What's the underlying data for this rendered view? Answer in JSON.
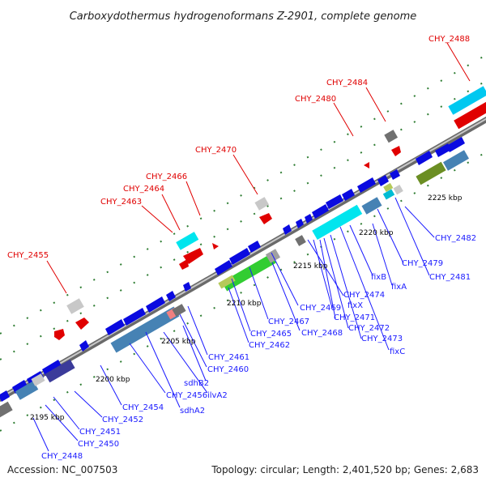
{
  "title": "Carboxydothermus hydrogenoformans Z-2901, complete genome",
  "footer": {
    "accession": "Accession: NC_007503",
    "summary": "Topology: circular; Length: 2,401,520 bp; Genes: 2,683"
  },
  "colors": {
    "gene_label_red": "#e00000",
    "gene_label_blue": "#1a1aff",
    "kbp_text": "#000000",
    "backbone_outer": "#707070",
    "backbone_inner": "#b8b8b8",
    "tick_green": "#2e7d32",
    "forward_gene": "#0a0ae0",
    "reverse_gene": "#e00000"
  },
  "scale_labels": [
    {
      "id": "kbp-2195",
      "text": "2195 kbp"
    },
    {
      "id": "kbp-2200",
      "text": "2200 kbp"
    },
    {
      "id": "kbp-2205",
      "text": "2205 kbp"
    },
    {
      "id": "kbp-2210",
      "text": "2210 kbp"
    },
    {
      "id": "kbp-2215",
      "text": "2215 kbp"
    },
    {
      "id": "kbp-2220",
      "text": "2220 kbp"
    },
    {
      "id": "kbp-2225",
      "text": "2225 kbp"
    }
  ],
  "red_labels": [
    {
      "id": "CHY_2455",
      "text": "CHY_2455"
    },
    {
      "id": "CHY_2463",
      "text": "CHY_2463"
    },
    {
      "id": "CHY_2464",
      "text": "CHY_2464"
    },
    {
      "id": "CHY_2466",
      "text": "CHY_2466"
    },
    {
      "id": "CHY_2470",
      "text": "CHY_2470"
    },
    {
      "id": "CHY_2480",
      "text": "CHY_2480"
    },
    {
      "id": "CHY_2484",
      "text": "CHY_2484"
    },
    {
      "id": "CHY_2488",
      "text": "CHY_2488"
    }
  ],
  "blue_labels": [
    {
      "id": "CHY_2448",
      "text": "CHY_2448"
    },
    {
      "id": "CHY_2450",
      "text": "CHY_2450"
    },
    {
      "id": "CHY_2451",
      "text": "CHY_2451"
    },
    {
      "id": "CHY_2452",
      "text": "CHY_2452"
    },
    {
      "id": "CHY_2454",
      "text": "CHY_2454"
    },
    {
      "id": "CHY_2456",
      "text": "CHY_2456"
    },
    {
      "id": "sdhA2",
      "text": "sdhA2"
    },
    {
      "id": "ilvA2",
      "text": "ilvA2"
    },
    {
      "id": "sdhB2",
      "text": "sdhB2"
    },
    {
      "id": "CHY_2460",
      "text": "CHY_2460"
    },
    {
      "id": "CHY_2461",
      "text": "CHY_2461"
    },
    {
      "id": "CHY_2462",
      "text": "CHY_2462"
    },
    {
      "id": "CHY_2465",
      "text": "CHY_2465"
    },
    {
      "id": "CHY_2467",
      "text": "CHY_2467"
    },
    {
      "id": "CHY_2469",
      "text": "CHY_2469"
    },
    {
      "id": "CHY_2468",
      "text": "CHY_2468"
    },
    {
      "id": "CHY_2474",
      "text": "CHY_2474"
    },
    {
      "id": "fixX",
      "text": "fixX"
    },
    {
      "id": "CHY_2471",
      "text": "CHY_2471"
    },
    {
      "id": "CHY_2472",
      "text": "CHY_2472"
    },
    {
      "id": "CHY_2473",
      "text": "CHY_2473"
    },
    {
      "id": "fixC",
      "text": "fixC"
    },
    {
      "id": "fixB",
      "text": "fixB"
    },
    {
      "id": "fixA",
      "text": "fixA"
    },
    {
      "id": "CHY_2479",
      "text": "CHY_2479"
    },
    {
      "id": "CHY_2481",
      "text": "CHY_2481"
    },
    {
      "id": "CHY_2482",
      "text": "CHY_2482"
    }
  ]
}
